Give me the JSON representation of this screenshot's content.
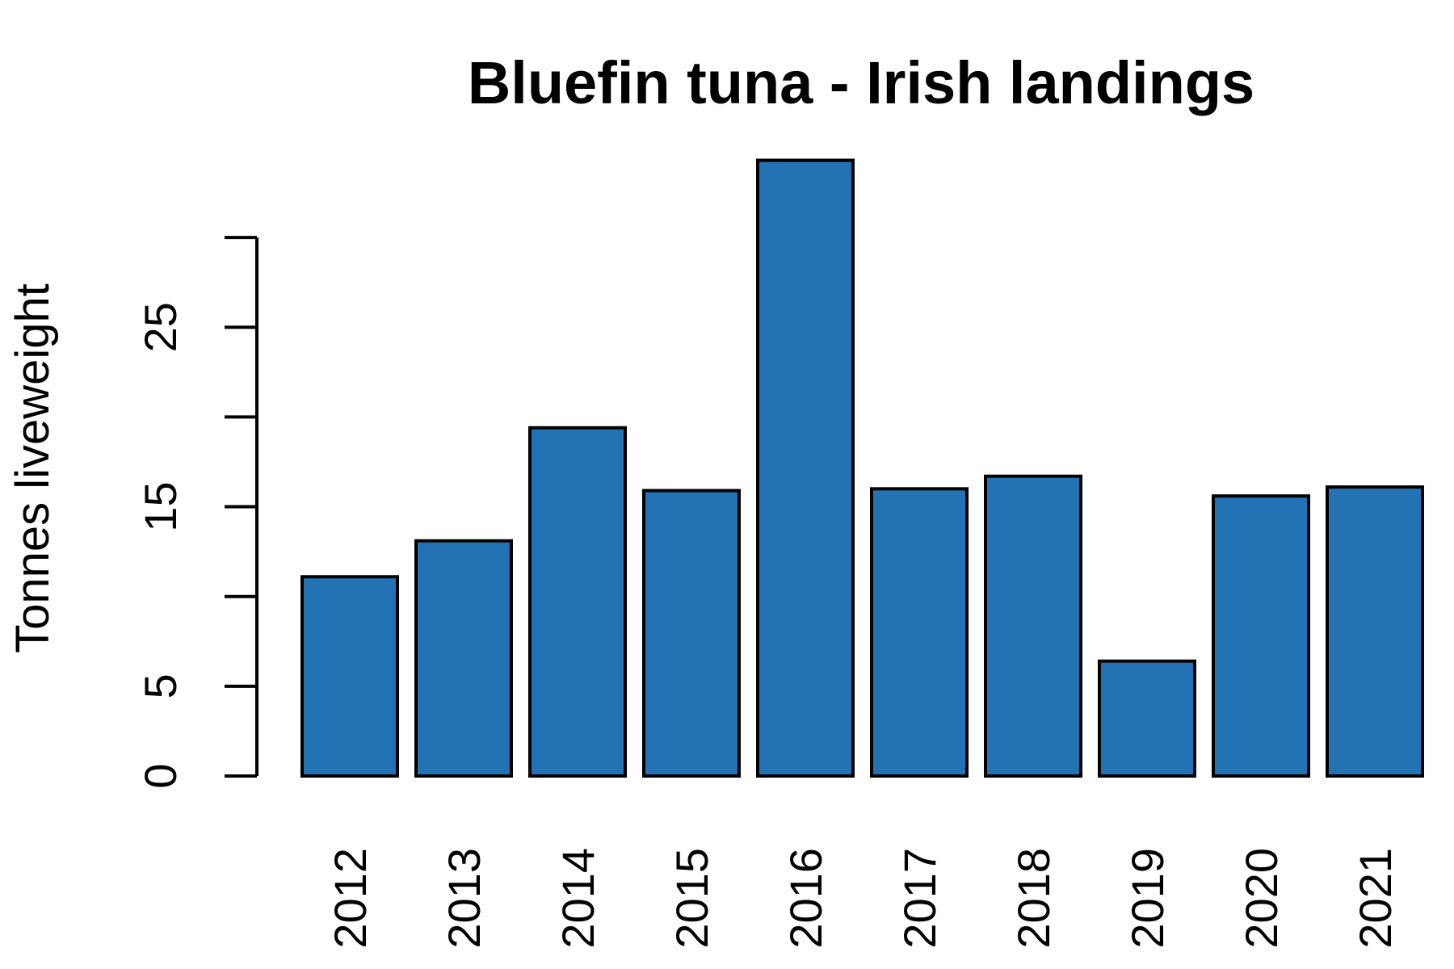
{
  "chart_data": {
    "type": "bar",
    "title": "Bluefin tuna - Irish landings",
    "y_label": "Tonnes liveweight",
    "categories": [
      "2012",
      "2013",
      "2014",
      "2015",
      "2016",
      "2017",
      "2018",
      "2019",
      "2020",
      "2021"
    ],
    "values": [
      11.1,
      13.1,
      19.4,
      15.9,
      34.3,
      16.0,
      16.7,
      6.4,
      15.6,
      16.1
    ],
    "color": "#2372b4",
    "ylim": [
      0,
      35
    ],
    "yticks": [
      0,
      5,
      {
        "value": 10,
        "label": null
      },
      15,
      {
        "value": 20,
        "label": null
      },
      25,
      {
        "value": 30,
        "label": null
      }
    ],
    "grid": false
  }
}
